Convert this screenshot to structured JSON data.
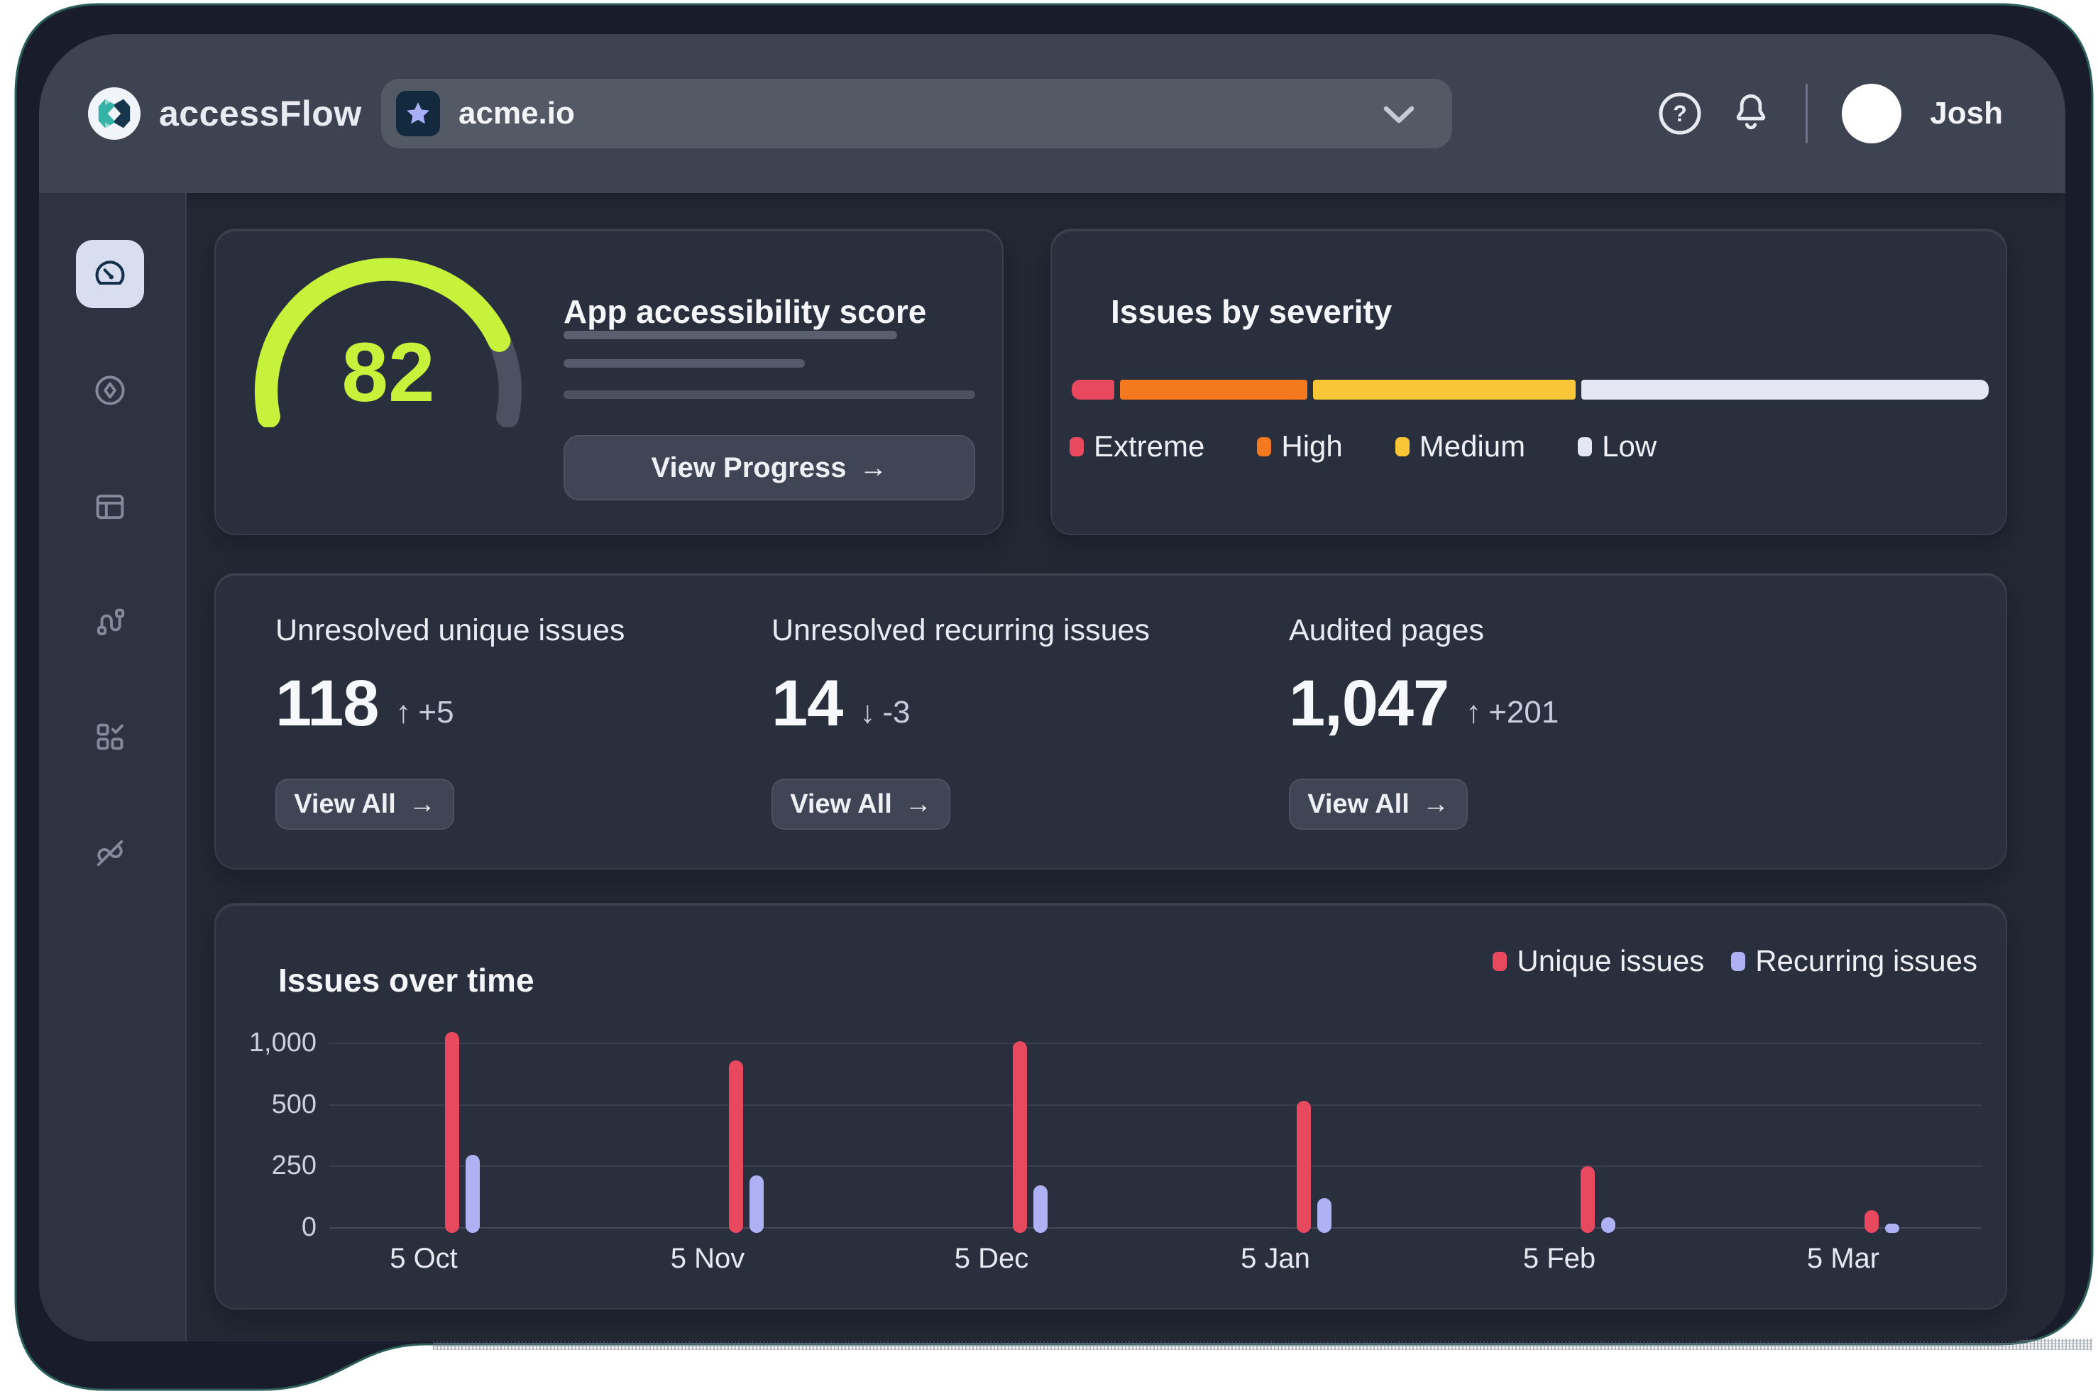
{
  "app": {
    "brand": "accessFlow"
  },
  "topbar": {
    "project_selector": {
      "value": "acme.io"
    },
    "user": {
      "name": "Josh"
    }
  },
  "sidebar": {
    "items": [
      {
        "id": "dashboard",
        "icon": "speedometer-icon",
        "active": true
      },
      {
        "id": "explore",
        "icon": "compass-icon",
        "active": false
      },
      {
        "id": "pages",
        "icon": "layout-icon",
        "active": false
      },
      {
        "id": "flows",
        "icon": "route-icon",
        "active": false
      },
      {
        "id": "audits",
        "icon": "grid-check-icon",
        "active": false
      },
      {
        "id": "integrations",
        "icon": "plug-icon",
        "active": false
      }
    ]
  },
  "score_card": {
    "title": "App accessibility score",
    "score": "82",
    "score_color": "#c6f23b",
    "track_color": "#4b5161",
    "button": {
      "label": "View Progress",
      "arrow": "→"
    }
  },
  "severity_card": {
    "title": "Issues by severity",
    "segments": [
      {
        "label": "Extreme",
        "color": "#e9495f",
        "pct": 4.7
      },
      {
        "label": "High",
        "color": "#f57a1f",
        "pct": 20.5
      },
      {
        "label": "Medium",
        "color": "#f8c636",
        "pct": 28.8
      },
      {
        "label": "Low",
        "color": "#e4e7f3",
        "pct": 44.6
      }
    ]
  },
  "stats": {
    "cards": [
      {
        "label": "Unresolved unique issues",
        "value": "118",
        "trend": "up",
        "trend_arrow": "↑",
        "delta": "+5",
        "button": {
          "label": "View All",
          "arrow": "→"
        }
      },
      {
        "label": "Unresolved recurring issues",
        "value": "14",
        "trend": "down",
        "trend_arrow": "↓",
        "delta": "-3",
        "button": {
          "label": "View All",
          "arrow": "→"
        }
      },
      {
        "label": "Audited pages",
        "value": "1,047",
        "trend": "up",
        "trend_arrow": "↑",
        "delta": "+201",
        "button": {
          "label": "View All",
          "arrow": "→"
        }
      }
    ]
  },
  "chart_data": {
    "type": "bar",
    "title": "Issues over time",
    "categories": [
      "5 Oct",
      "5 Nov",
      "5 Dec",
      "5 Jan",
      "5 Feb",
      "5 Mar"
    ],
    "series": [
      {
        "name": "Unique issues",
        "color": "#e9495f",
        "values": [
          1100,
          870,
          1025,
          540,
          255,
          75
        ]
      },
      {
        "name": "Recurring issues",
        "color": "#aeb1f4",
        "values": [
          300,
          215,
          175,
          125,
          45,
          20
        ]
      }
    ],
    "yticks": [
      0,
      250,
      500,
      1000
    ],
    "ytick_labels": [
      "0",
      "250",
      "500",
      "1,000"
    ],
    "xlabel": "",
    "ylabel": "",
    "grid": "horizontal",
    "legend_position": "top-right",
    "axis_note": "gridlines evenly spaced at 0, 250, 500, 1,000"
  }
}
